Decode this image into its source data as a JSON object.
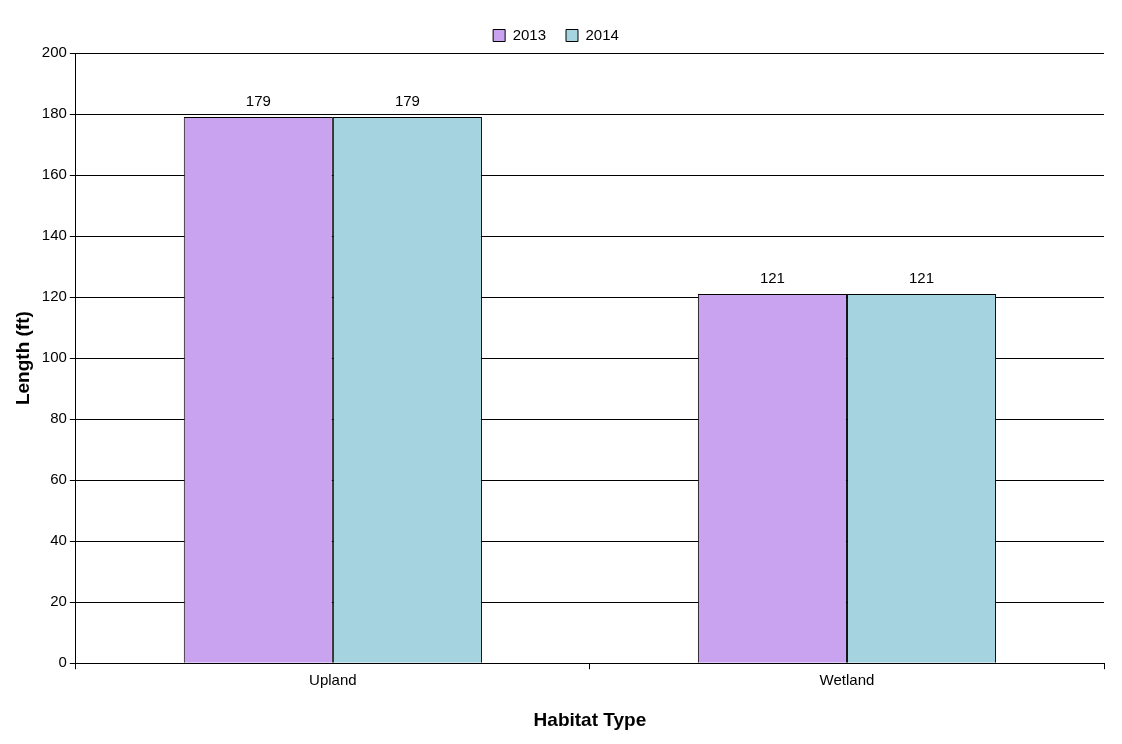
{
  "chart_data": {
    "type": "bar",
    "xlabel": "Habitat Type",
    "ylabel": "Length (ft)",
    "categories": [
      "Upland",
      "Wetland"
    ],
    "series": [
      {
        "name": "2013",
        "color": "#c9a3f0",
        "values": [
          179,
          121
        ]
      },
      {
        "name": "2014",
        "color": "#a6d3e0",
        "values": [
          179,
          121
        ]
      }
    ],
    "ylim": [
      0,
      200
    ],
    "yticks": [
      0,
      20,
      40,
      60,
      80,
      100,
      120,
      140,
      160,
      180,
      200
    ],
    "grid": "y",
    "legend": "top",
    "data_labels": true
  }
}
